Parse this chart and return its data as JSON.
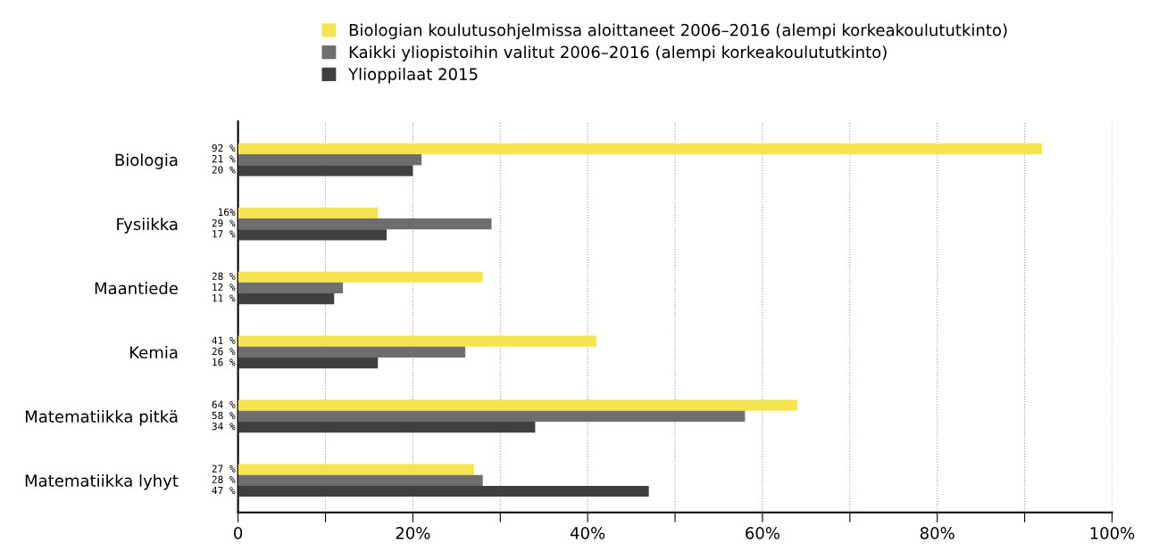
{
  "chart_data": {
    "type": "bar",
    "orientation": "horizontal",
    "categories": [
      "Biologia",
      "Fysiikka",
      "Maantiede",
      "Kemia",
      "Matematiikka pitkä",
      "Matematiikka lyhyt"
    ],
    "series": [
      {
        "name": "Biologian koulutusohjelmissa aloittaneet 2006–2016 (alempi korkeakoulututkinto)",
        "color": "#f5e451",
        "values": [
          92,
          16,
          28,
          41,
          64,
          27
        ],
        "value_labels": [
          "92 %",
          "16%",
          "28 %",
          "41 %",
          "64 %",
          "27 %"
        ]
      },
      {
        "name": "Kaikki yliopistoihin valitut 2006–2016 (alempi korkeakoulututkinto)",
        "color": "#6e6e6e",
        "values": [
          21,
          29,
          12,
          26,
          58,
          28
        ],
        "value_labels": [
          "21 %",
          "29 %",
          "12 %",
          "26 %",
          "58 %",
          "28 %"
        ]
      },
      {
        "name": "Ylioppilaat 2015",
        "color": "#404040",
        "values": [
          20,
          17,
          11,
          16,
          34,
          47
        ],
        "value_labels": [
          "20 %",
          "17 %",
          "11 %",
          "16 %",
          "34 %",
          "47 %"
        ]
      }
    ],
    "xlim": [
      0,
      100
    ],
    "xticks": [
      {
        "value": 0,
        "label": "0"
      },
      {
        "value": 10,
        "label": null
      },
      {
        "value": 20,
        "label": "20%"
      },
      {
        "value": 30,
        "label": null
      },
      {
        "value": 40,
        "label": "40%"
      },
      {
        "value": 50,
        "label": null
      },
      {
        "value": 60,
        "label": "60%"
      },
      {
        "value": 70,
        "label": null
      },
      {
        "value": 80,
        "label": "80%"
      },
      {
        "value": 90,
        "label": null
      },
      {
        "value": 100,
        "label": "100%"
      }
    ],
    "grid": "x",
    "legend": "top"
  }
}
